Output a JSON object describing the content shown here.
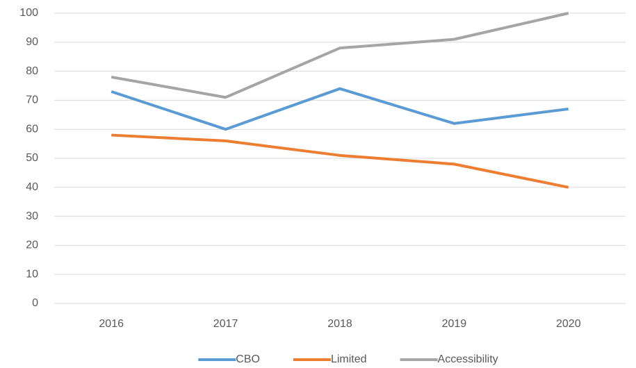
{
  "chart_data": {
    "type": "line",
    "categories": [
      "2016",
      "2017",
      "2018",
      "2019",
      "2020"
    ],
    "series": [
      {
        "name": "CBO",
        "color": "#5b9bd5",
        "values": [
          73,
          60,
          74,
          62,
          67
        ]
      },
      {
        "name": "Limited",
        "color": "#ed7d31",
        "values": [
          58,
          56,
          51,
          48,
          40
        ]
      },
      {
        "name": "Accessibility",
        "color": "#a5a5a5",
        "values": [
          78,
          71,
          88,
          91,
          100
        ]
      }
    ],
    "ylim": [
      0,
      100
    ],
    "yticks": [
      0,
      10,
      20,
      30,
      40,
      50,
      60,
      70,
      80,
      90,
      100
    ],
    "grid": true,
    "legend": "bottom"
  }
}
